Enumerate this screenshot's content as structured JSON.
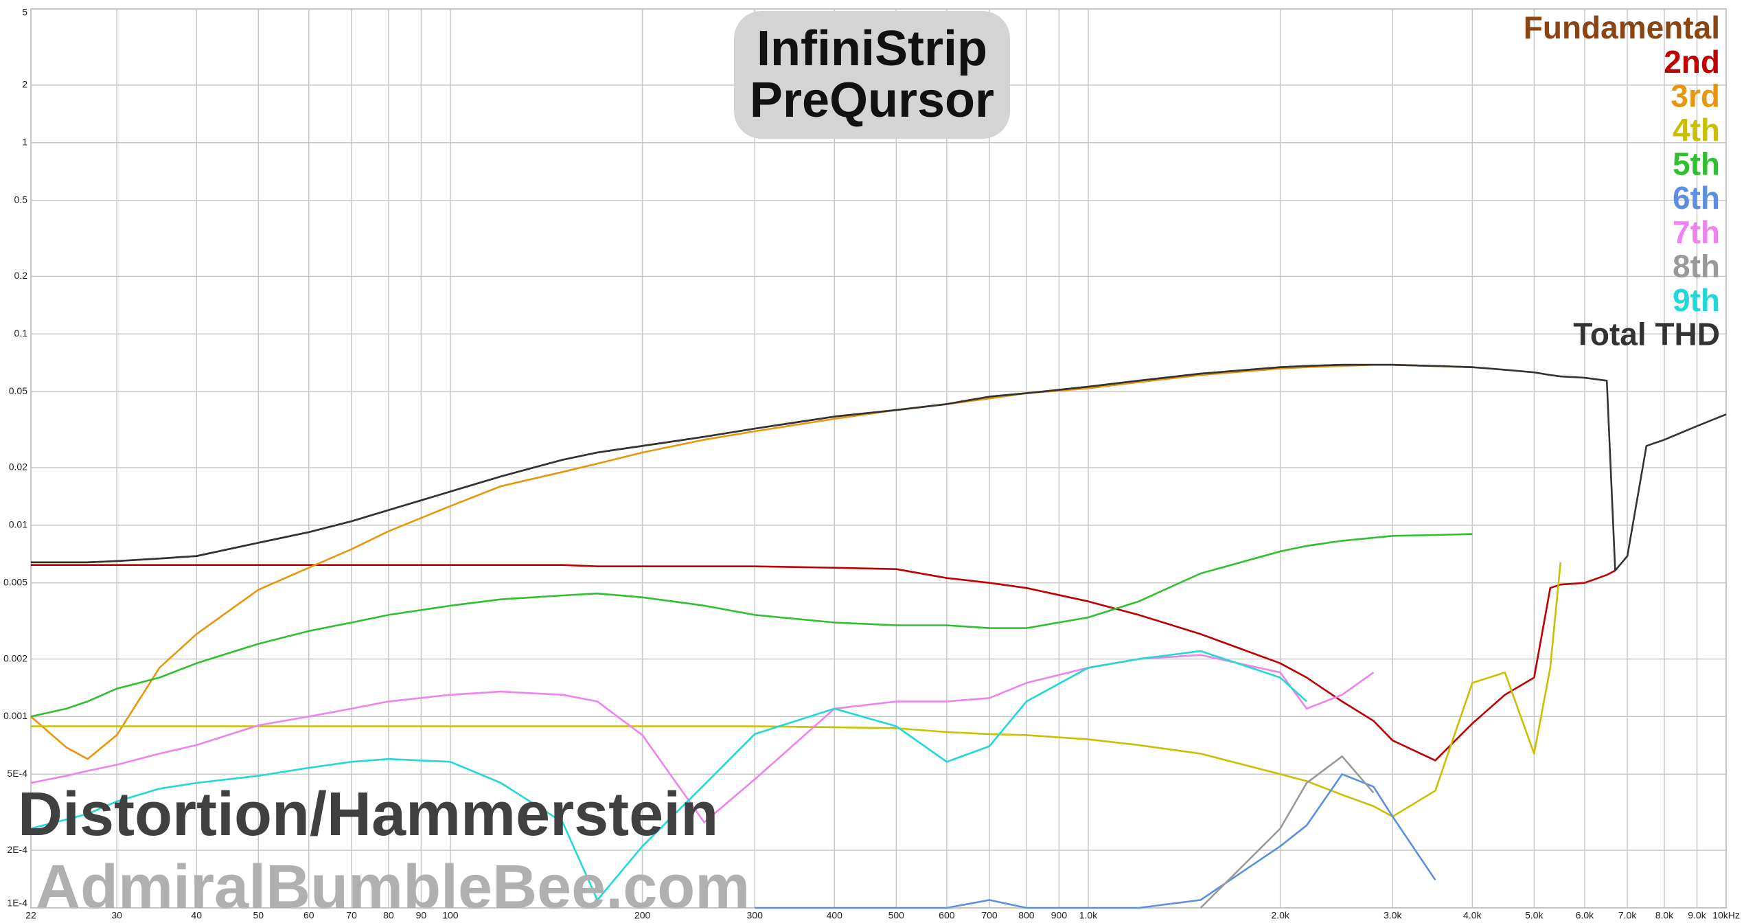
{
  "chart_data": {
    "type": "line",
    "title_lines": [
      "InfiniStrip",
      "PreQursor"
    ],
    "watermark": "Distortion/Hammerstein",
    "site": "AdmiralBumbleBee.com",
    "x_log": true,
    "y_log": true,
    "grid": true,
    "legend": "top-right",
    "xlim": [
      22,
      10000
    ],
    "ylim": [
      0.0001,
      5
    ],
    "xticks": [
      22,
      30,
      40,
      50,
      60,
      70,
      80,
      90,
      100,
      200,
      300,
      400,
      500,
      600,
      700,
      800,
      900,
      {
        "value": 1000,
        "label": "1.0k"
      },
      {
        "value": 2000,
        "label": "2.0k"
      },
      {
        "value": 3000,
        "label": "3.0k"
      },
      {
        "value": 4000,
        "label": "4.0k"
      },
      {
        "value": 5000,
        "label": "5.0k"
      },
      {
        "value": 6000,
        "label": "6.0k"
      },
      {
        "value": 7000,
        "label": "7.0k"
      },
      {
        "value": 8000,
        "label": "8.0k"
      },
      {
        "value": 9000,
        "label": "9.0k"
      },
      {
        "value": 10000,
        "label": "10kHz"
      }
    ],
    "yticks": [
      {
        "value": 0.0001,
        "label": "1E-4"
      },
      {
        "value": 0.0002,
        "label": "2E-4"
      },
      {
        "value": 0.0005,
        "label": "5E-4"
      },
      0.001,
      0.002,
      0.005,
      0.01,
      0.02,
      0.05,
      0.1,
      0.2,
      0.5,
      1,
      2,
      5
    ],
    "x": [
      22,
      25,
      27,
      30,
      35,
      40,
      50,
      60,
      70,
      80,
      100,
      120,
      150,
      170,
      200,
      250,
      300,
      400,
      500,
      600,
      700,
      800,
      1000,
      1200,
      1500,
      2000,
      2200,
      2500,
      2800,
      3000,
      3500,
      4000,
      4500,
      5000,
      5300,
      5500,
      6000,
      6500,
      6700,
      7000,
      7500,
      8000,
      9000,
      10000
    ],
    "series": [
      {
        "name": "Fundamental",
        "color": "#8b4513",
        "values": [
          0.0064,
          0.0064,
          0.0064,
          0.0065,
          0.0067,
          0.0069,
          0.0081,
          0.0092,
          0.0105,
          0.012,
          0.015,
          0.018,
          0.022,
          0.024,
          0.026,
          0.029,
          0.032,
          0.037,
          0.04,
          0.043,
          0.047,
          0.049,
          0.053,
          0.057,
          0.062,
          0.067,
          0.068,
          0.069,
          0.069,
          0.069,
          0.068,
          0.067,
          null,
          null,
          null,
          null,
          null,
          null,
          null,
          null,
          null,
          null,
          null,
          null
        ]
      },
      {
        "name": "2nd",
        "color": "#c00000",
        "values": [
          0.0062,
          0.0062,
          0.0062,
          0.0062,
          0.0062,
          0.0062,
          0.0062,
          0.0062,
          0.0062,
          0.0062,
          0.0062,
          0.0062,
          0.0062,
          0.0061,
          0.0061,
          0.0061,
          0.0061,
          0.006,
          0.0059,
          0.0053,
          0.005,
          0.0047,
          0.004,
          0.0034,
          0.0027,
          0.0019,
          0.0016,
          0.0012,
          0.00095,
          0.00075,
          0.00059,
          0.00092,
          0.0013,
          0.0016,
          0.0047,
          0.0049,
          0.005,
          0.0055,
          0.0058,
          null,
          null,
          null,
          null,
          null
        ]
      },
      {
        "name": "3rd",
        "color": "#e8960c",
        "values": [
          0.001,
          0.00069,
          0.0006,
          0.0008,
          0.0018,
          0.0027,
          0.0046,
          0.006,
          0.0075,
          0.0093,
          0.0126,
          0.016,
          0.019,
          0.021,
          0.024,
          0.028,
          0.031,
          0.036,
          0.04,
          0.043,
          0.046,
          0.049,
          0.052,
          0.056,
          0.061,
          0.066,
          0.067,
          0.068,
          0.069,
          0.069,
          0.068,
          0.067,
          null,
          null,
          null,
          null,
          null,
          null,
          null,
          null,
          null,
          null,
          null,
          null
        ]
      },
      {
        "name": "4th",
        "color": "#c8c000",
        "values": [
          0.00089,
          0.00089,
          0.00089,
          0.00089,
          0.00089,
          0.00089,
          0.00089,
          0.00089,
          0.00089,
          0.00089,
          0.00089,
          0.00089,
          0.00089,
          0.00089,
          0.00089,
          0.00089,
          0.00089,
          0.00088,
          0.00087,
          0.00083,
          0.00081,
          0.0008,
          0.00076,
          0.00071,
          0.00064,
          0.0005,
          0.00046,
          0.00039,
          0.00034,
          0.0003,
          0.00041,
          0.0015,
          0.0017,
          0.00064,
          0.0018,
          0.0064,
          null,
          null,
          null,
          null,
          null,
          null,
          null,
          null
        ]
      },
      {
        "name": "5th",
        "color": "#2ec02e",
        "values": [
          0.001,
          0.0011,
          0.0012,
          0.0014,
          0.0016,
          0.0019,
          0.0024,
          0.0028,
          0.0031,
          0.0034,
          0.0038,
          0.0041,
          0.0043,
          0.0044,
          0.0042,
          0.0038,
          0.0034,
          0.0031,
          0.003,
          0.003,
          0.0029,
          0.0029,
          0.0033,
          0.004,
          0.0056,
          0.0073,
          0.0078,
          0.0083,
          0.0086,
          0.0088,
          0.0089,
          0.009,
          null,
          null,
          null,
          null,
          null,
          null,
          null,
          null,
          null,
          null,
          null,
          null
        ]
      },
      {
        "name": "6th",
        "color": "#5b8fe0",
        "values": [
          null,
          null,
          null,
          null,
          null,
          null,
          null,
          null,
          null,
          null,
          null,
          null,
          null,
          null,
          null,
          null,
          0.0001,
          0.0001,
          0.0001,
          0.0001,
          0.00011,
          0.0001,
          0.0001,
          0.0001,
          0.00011,
          0.00021,
          0.00027,
          0.0005,
          0.00043,
          0.0003,
          0.00014,
          null,
          null,
          null,
          null,
          null,
          null,
          null,
          null,
          null,
          null,
          null,
          null,
          null
        ]
      },
      {
        "name": "7th",
        "color": "#ee82ee",
        "values": [
          0.00045,
          0.00049,
          0.00052,
          0.00056,
          0.00064,
          0.00071,
          0.0009,
          0.001,
          0.0011,
          0.0012,
          0.0013,
          0.00135,
          0.0013,
          0.0012,
          0.0008,
          0.00028,
          0.00047,
          0.0011,
          0.0012,
          0.0012,
          0.00125,
          0.0015,
          0.0018,
          0.002,
          0.0021,
          0.0017,
          0.0011,
          0.0013,
          0.0017,
          null,
          null,
          null,
          null,
          null,
          null,
          null,
          null,
          null,
          null,
          null,
          null,
          null,
          null,
          null
        ]
      },
      {
        "name": "8th",
        "color": "#999999",
        "values": [
          null,
          null,
          null,
          null,
          null,
          null,
          null,
          null,
          null,
          null,
          null,
          null,
          null,
          null,
          null,
          null,
          null,
          null,
          null,
          null,
          null,
          null,
          null,
          null,
          0.0001,
          0.00026,
          0.00045,
          0.00062,
          0.0004,
          null,
          null,
          null,
          null,
          null,
          null,
          null,
          null,
          null,
          null,
          null,
          null,
          null,
          null,
          null
        ]
      },
      {
        "name": "9th",
        "color": "#20d8d8",
        "values": [
          0.00026,
          0.00029,
          0.00031,
          0.00036,
          0.00042,
          0.00045,
          0.00049,
          0.00054,
          0.00058,
          0.0006,
          0.00058,
          0.00045,
          0.00028,
          0.00011,
          0.00021,
          0.00044,
          0.00081,
          0.0011,
          0.00089,
          0.00058,
          0.0007,
          0.0012,
          0.0018,
          0.002,
          0.0022,
          0.0016,
          0.0012,
          null,
          null,
          null,
          null,
          null,
          null,
          null,
          null,
          null,
          null,
          null,
          null,
          null,
          null,
          null,
          null,
          null
        ]
      },
      {
        "name": "Total THD",
        "color": "#333333",
        "values": [
          0.0064,
          0.0064,
          0.0064,
          0.0065,
          0.0067,
          0.0069,
          0.0081,
          0.0092,
          0.0105,
          0.012,
          0.015,
          0.018,
          0.022,
          0.024,
          0.026,
          0.029,
          0.032,
          0.037,
          0.04,
          0.043,
          0.047,
          0.049,
          0.053,
          0.057,
          0.062,
          0.067,
          0.068,
          0.069,
          0.069,
          0.069,
          0.068,
          0.067,
          0.065,
          0.063,
          0.061,
          0.06,
          0.059,
          0.057,
          0.0058,
          0.0069,
          0.026,
          0.028,
          0.033,
          0.038
        ]
      }
    ]
  }
}
